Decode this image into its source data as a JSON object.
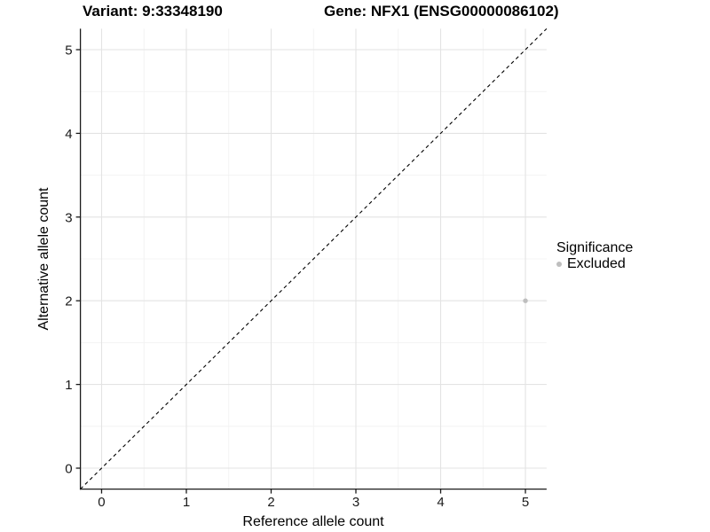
{
  "chart_data": {
    "type": "scatter",
    "titles": {
      "left": "Variant: 9:33348190",
      "right": "Gene: NFX1 (ENSG00000086102)"
    },
    "xlabel": "Reference allele count",
    "ylabel": "Alternative allele count",
    "xlim": [
      -0.25,
      5.25
    ],
    "ylim": [
      -0.25,
      5.25
    ],
    "x_ticks": [
      0,
      1,
      2,
      3,
      4,
      5
    ],
    "y_ticks": [
      0,
      1,
      2,
      3,
      4,
      5
    ],
    "grid": {
      "major": true,
      "minor": true
    },
    "points": [
      {
        "x": 5,
        "y": 2,
        "significance": "Excluded"
      }
    ],
    "reference_line": {
      "type": "identity",
      "slope": 1,
      "intercept": 0,
      "style": "dashed"
    },
    "legend": {
      "title": "Significance",
      "position": "right",
      "entries": [
        {
          "label": "Excluded",
          "color": "#bebebe",
          "marker": "circle"
        }
      ]
    },
    "style": {
      "background": "#ffffff",
      "grid_major": "#e3e3e3",
      "grid_minor": "#f1f1f1",
      "axis": "#1a1a1a",
      "text": "#1a1a1a",
      "reference_line": "#000000",
      "point_excluded": "#bebebe"
    }
  }
}
